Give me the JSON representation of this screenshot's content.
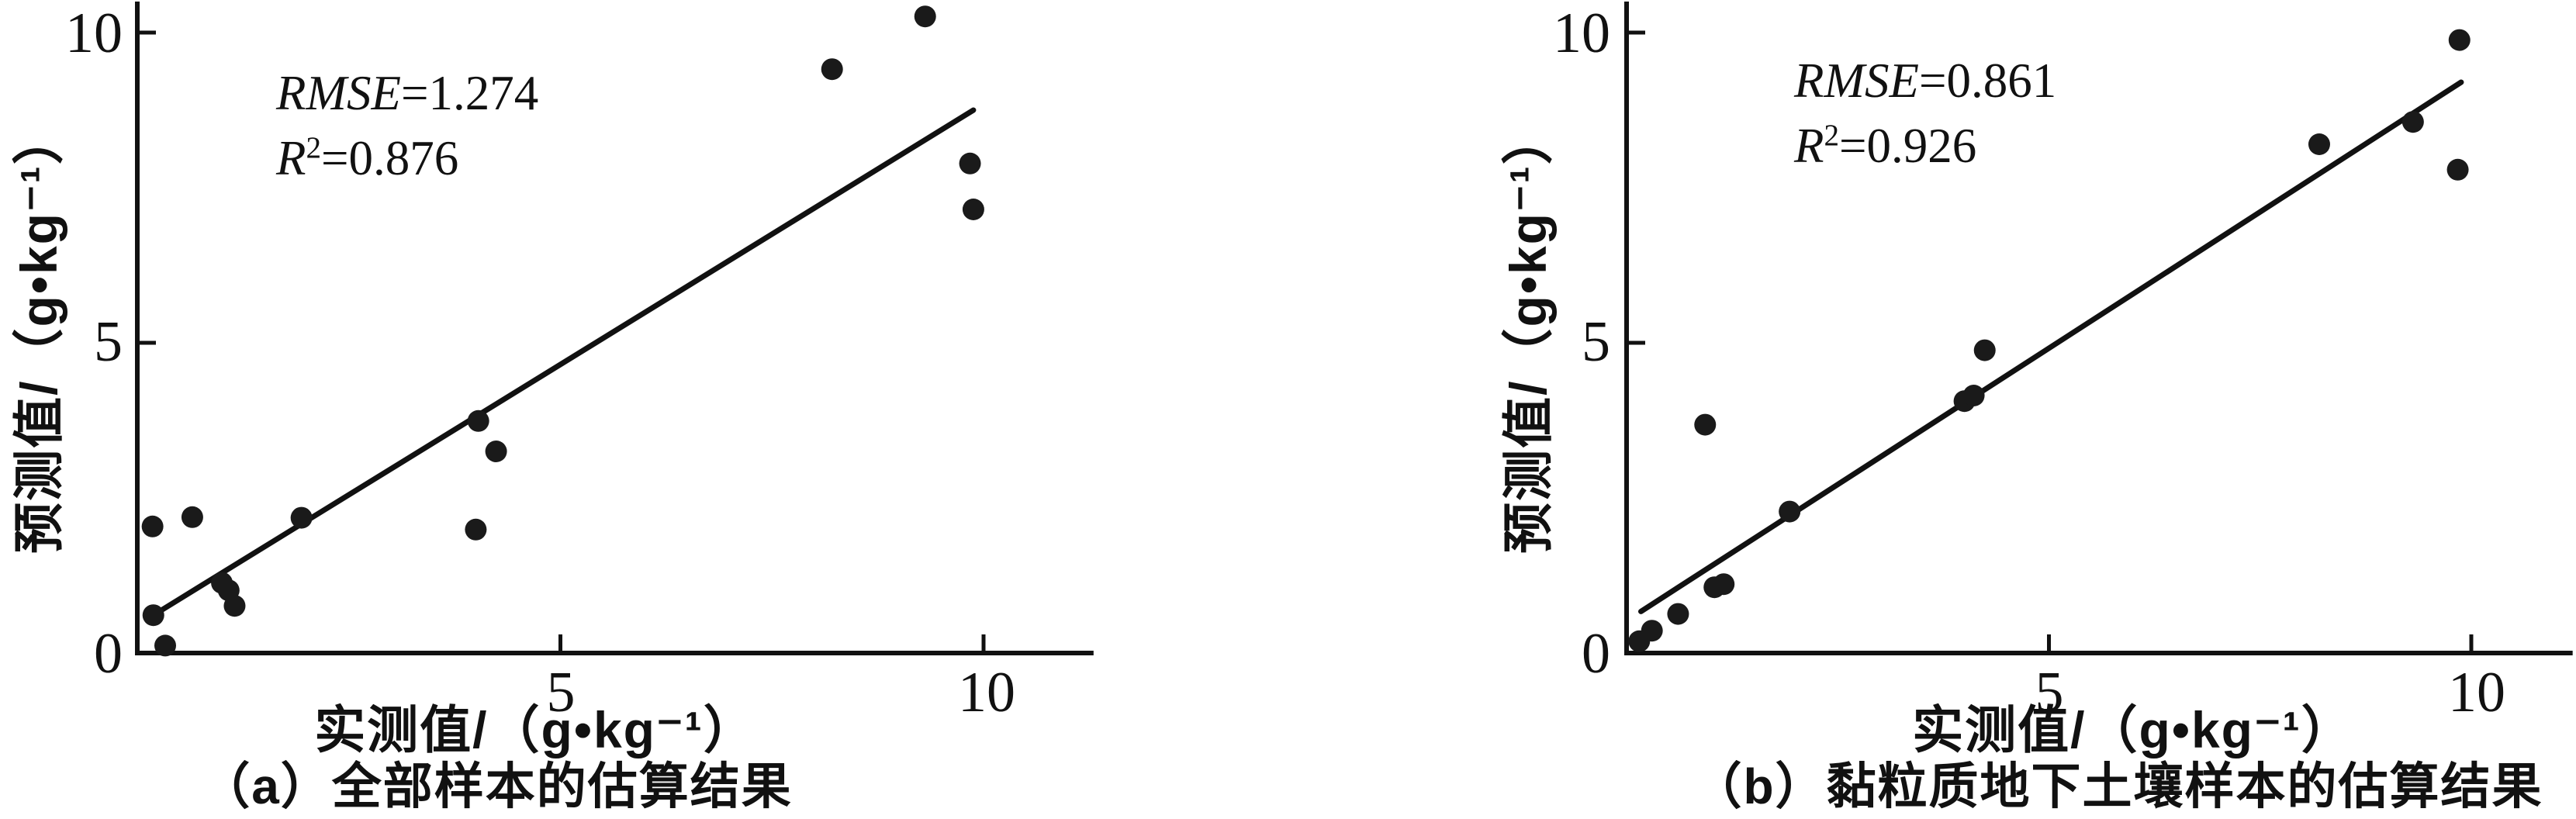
{
  "figure": {
    "background": "#ffffff",
    "ink_color": "#111111",
    "point_color": "#1a1a1a"
  },
  "chart_data": [
    {
      "type": "scatter",
      "panel": "a",
      "caption": "（a）全部样本的估算结果",
      "xlabel": "实测值/（g•kg⁻¹）",
      "ylabel": "预测值/（g•kg⁻¹）",
      "annotation": {
        "rmse_label": "RMSE",
        "rmse_value": "=1.274",
        "r2_label": "R",
        "r2_sup": "2",
        "r2_value": "=0.876"
      },
      "xlim": [
        0,
        11.3
      ],
      "ylim": [
        0,
        10.5
      ],
      "x_ticks": [
        {
          "value": 5,
          "label": "5"
        },
        {
          "value": 10,
          "label": "10"
        }
      ],
      "y_ticks": [
        {
          "value": 10,
          "label": "10"
        },
        {
          "value": 5,
          "label": "5"
        },
        {
          "value": 0,
          "label": "0"
        }
      ],
      "points": [
        [
          0.18,
          2.04
        ],
        [
          0.65,
          2.19
        ],
        [
          1.94,
          2.18
        ],
        [
          1.0,
          1.13
        ],
        [
          1.08,
          1.01
        ],
        [
          1.15,
          0.76
        ],
        [
          0.19,
          0.61
        ],
        [
          0.33,
          0.12
        ],
        [
          4.03,
          3.74
        ],
        [
          4.24,
          3.25
        ],
        [
          4.0,
          1.99
        ],
        [
          8.21,
          9.41
        ],
        [
          9.31,
          10.26
        ],
        [
          9.84,
          7.89
        ],
        [
          9.88,
          7.15
        ]
      ],
      "fit_line": {
        "x1": 0.19,
        "y1": 0.61,
        "x2": 9.88,
        "y2": 8.75
      },
      "grid": false,
      "legend": "none"
    },
    {
      "type": "scatter",
      "panel": "b",
      "caption": "（b）黏粒质地下土壤样本的估算结果",
      "xlabel": "实测值/（g•kg⁻¹）",
      "ylabel": "预测值/（g•kg⁻¹）",
      "annotation": {
        "rmse_label": "RMSE",
        "rmse_value": "=0.861",
        "r2_label": "R",
        "r2_sup": "2",
        "r2_value": "=0.926"
      },
      "xlim": [
        0,
        11.2
      ],
      "ylim": [
        0,
        10.5
      ],
      "x_ticks": [
        {
          "value": 5,
          "label": "5"
        },
        {
          "value": 10,
          "label": "10"
        }
      ],
      "y_ticks": [
        {
          "value": 10,
          "label": "10"
        },
        {
          "value": 5,
          "label": "5"
        },
        {
          "value": 0,
          "label": "0"
        }
      ],
      "points": [
        [
          0.15,
          0.19
        ],
        [
          0.3,
          0.36
        ],
        [
          0.61,
          0.63
        ],
        [
          1.04,
          1.06
        ],
        [
          1.15,
          1.11
        ],
        [
          0.93,
          3.68
        ],
        [
          1.93,
          2.28
        ],
        [
          4.0,
          4.06
        ],
        [
          4.11,
          4.15
        ],
        [
          4.24,
          4.88
        ],
        [
          8.2,
          8.2
        ],
        [
          9.31,
          8.56
        ],
        [
          9.86,
          9.88
        ],
        [
          9.84,
          7.79
        ]
      ],
      "fit_line": {
        "x1": 0.17,
        "y1": 0.67,
        "x2": 9.88,
        "y2": 9.2
      },
      "grid": false,
      "legend": "none"
    }
  ]
}
